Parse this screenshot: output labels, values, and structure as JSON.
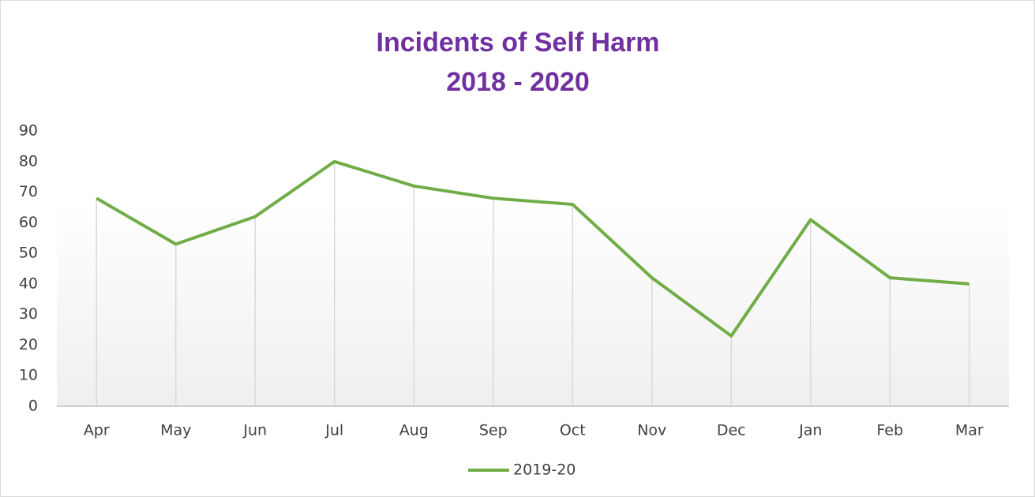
{
  "chart_data": {
    "type": "line",
    "title": "Incidents of Self Harm",
    "subtitle": "2018 - 2020",
    "categories": [
      "Apr",
      "May",
      "Jun",
      "Jul",
      "Aug",
      "Sep",
      "Oct",
      "Nov",
      "Dec",
      "Jan",
      "Feb",
      "Mar"
    ],
    "series": [
      {
        "name": "2019-20",
        "color": "#70ad47",
        "values": [
          68,
          53,
          62,
          80,
          72,
          68,
          66,
          42,
          23,
          61,
          42,
          40
        ]
      }
    ],
    "ylim": [
      0,
      90
    ],
    "yticks": [
      0,
      10,
      20,
      30,
      40,
      50,
      60,
      70,
      80,
      90
    ],
    "drop_lines": true,
    "legend": "bottom"
  }
}
